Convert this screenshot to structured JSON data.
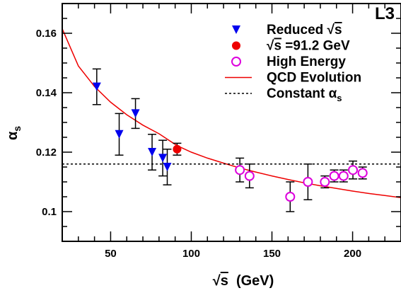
{
  "chart_data": {
    "type": "scatter",
    "title": "L3",
    "xlabel": {
      "radical": "√",
      "main": "s",
      "suffix": "  (GeV)"
    },
    "ylabel": {
      "main": "α",
      "sub": "s"
    },
    "xlim": [
      20,
      230
    ],
    "ylim": [
      0.09,
      0.17
    ],
    "x_ticks": [
      50,
      100,
      150,
      200
    ],
    "y_ticks": [
      0.1,
      0.12,
      0.14,
      0.16
    ],
    "x_tick_labels": [
      "50",
      "100",
      "150",
      "200"
    ],
    "y_tick_labels": [
      "0.1",
      "0.12",
      "0.14",
      "0.16"
    ],
    "grid": false,
    "legend_position": "top-right",
    "colors": {
      "reduced": "#0000ee",
      "z_pole": "#ee0000",
      "high_energy": "#dd00dd",
      "qcd": "#ee0000",
      "constant": "#000000"
    },
    "series": [
      {
        "name": "Reduced √s",
        "legend": {
          "before": "Reduced ",
          "radical": "√",
          "after": "s"
        },
        "marker": "triangle-down",
        "points": [
          {
            "x": 41.4,
            "y": 0.142,
            "err": 0.006
          },
          {
            "x": 55.3,
            "y": 0.126,
            "err": 0.007
          },
          {
            "x": 65.4,
            "y": 0.133,
            "err": 0.005
          },
          {
            "x": 75.7,
            "y": 0.12,
            "err": 0.006
          },
          {
            "x": 82.3,
            "y": 0.118,
            "err": 0.006
          },
          {
            "x": 85.1,
            "y": 0.115,
            "err": 0.006
          }
        ]
      },
      {
        "name": "√s =91.2 GeV",
        "legend": {
          "before": "",
          "radical": "√",
          "after": "s =91.2 GeV"
        },
        "marker": "circle-filled",
        "points": [
          {
            "x": 91.2,
            "y": 0.121,
            "err": 0.002
          }
        ]
      },
      {
        "name": "High Energy",
        "legend": {
          "before": "High Energy",
          "radical": "",
          "after": ""
        },
        "marker": "circle-open",
        "points": [
          {
            "x": 130.1,
            "y": 0.114,
            "err": 0.004
          },
          {
            "x": 136.1,
            "y": 0.112,
            "err": 0.004
          },
          {
            "x": 161.3,
            "y": 0.105,
            "err": 0.005
          },
          {
            "x": 172.3,
            "y": 0.11,
            "err": 0.006
          },
          {
            "x": 182.8,
            "y": 0.11,
            "err": 0.002
          },
          {
            "x": 188.6,
            "y": 0.112,
            "err": 0.002
          },
          {
            "x": 194.4,
            "y": 0.112,
            "err": 0.002
          },
          {
            "x": 200.2,
            "y": 0.114,
            "err": 0.003
          },
          {
            "x": 206.2,
            "y": 0.113,
            "err": 0.002
          }
        ]
      },
      {
        "name": "QCD Evolution",
        "legend": {
          "before": "QCD Evolution",
          "radical": "",
          "after": ""
        },
        "type": "line",
        "style": "solid",
        "curve": {
          "x": [
            20,
            30,
            40,
            50,
            60,
            70,
            80,
            91.2,
            100,
            110,
            120,
            130,
            140,
            150,
            160,
            170,
            180,
            190,
            200,
            210,
            220,
            230
          ],
          "y": [
            0.1615,
            0.149,
            0.1421,
            0.1368,
            0.1326,
            0.1291,
            0.1262,
            0.1222,
            0.12,
            0.118,
            0.1163,
            0.1147,
            0.1133,
            0.112,
            0.1108,
            0.1097,
            0.1087,
            0.1078,
            0.1069,
            0.1061,
            0.1054,
            0.1047
          ]
        }
      },
      {
        "name": "Constant αs",
        "legend": {
          "before": "Constant ",
          "greek": "α",
          "sub": "s"
        },
        "type": "line",
        "style": "dashed",
        "constant": 0.116
      }
    ]
  }
}
